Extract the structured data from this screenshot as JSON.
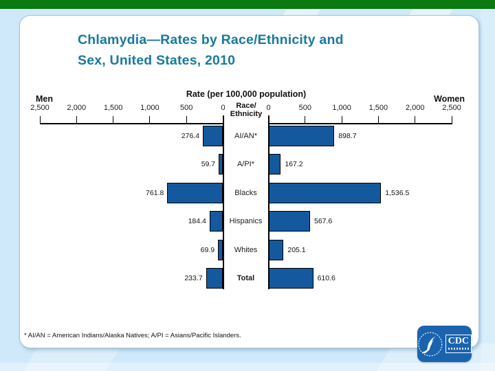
{
  "slide": {
    "title_line1": "Chlamydia—Rates by Race/Ethnicity and",
    "title_line2": "Sex, United States, 2010",
    "footnote": "* AI/AN = American Indians/Alaska Natives; A/PI = Asians/Pacific Islanders.",
    "logo_text": "CDC"
  },
  "chart_data": {
    "type": "bar",
    "orientation": "horizontal-pyramid",
    "title": "Rate (per 100,000 population)",
    "left_series_label": "Men",
    "right_series_label": "Women",
    "center_label_line1": "Race/",
    "center_label_line2": "Ethnicity",
    "axis_range": [
      0,
      2500
    ],
    "axis_tick_interval": 500,
    "axis_ticks_left": [
      "2,500",
      "2,000",
      "1,500",
      "1,000",
      "500",
      "0"
    ],
    "axis_ticks_right": [
      "0",
      "500",
      "1,000",
      "1,500",
      "2,000",
      "2,500"
    ],
    "categories": [
      "AI/AN*",
      "A/PI*",
      "Blacks",
      "Hispanics",
      "Whites",
      "Total"
    ],
    "emphasized_category": "Total",
    "series": [
      {
        "name": "Men",
        "side": "left",
        "values": [
          276.4,
          59.7,
          761.8,
          184.4,
          69.9,
          233.7
        ],
        "labels": [
          "276.4",
          "59.7",
          "761.8",
          "184.4",
          "69.9",
          "233.7"
        ]
      },
      {
        "name": "Women",
        "side": "right",
        "values": [
          898.7,
          167.2,
          1536.5,
          567.6,
          205.1,
          610.6
        ],
        "labels": [
          "898.7",
          "167.2",
          "1,536.5",
          "567.6",
          "205.1",
          "610.6"
        ]
      }
    ],
    "bar_color": "#14599e",
    "bar_border_color": "#000000",
    "legend_position": "none",
    "grid": false
  },
  "colors": {
    "top_bar": "#0b7a10",
    "background": "#cfe9fa",
    "title": "#177a9e",
    "logo_background": "#1a64ae"
  }
}
